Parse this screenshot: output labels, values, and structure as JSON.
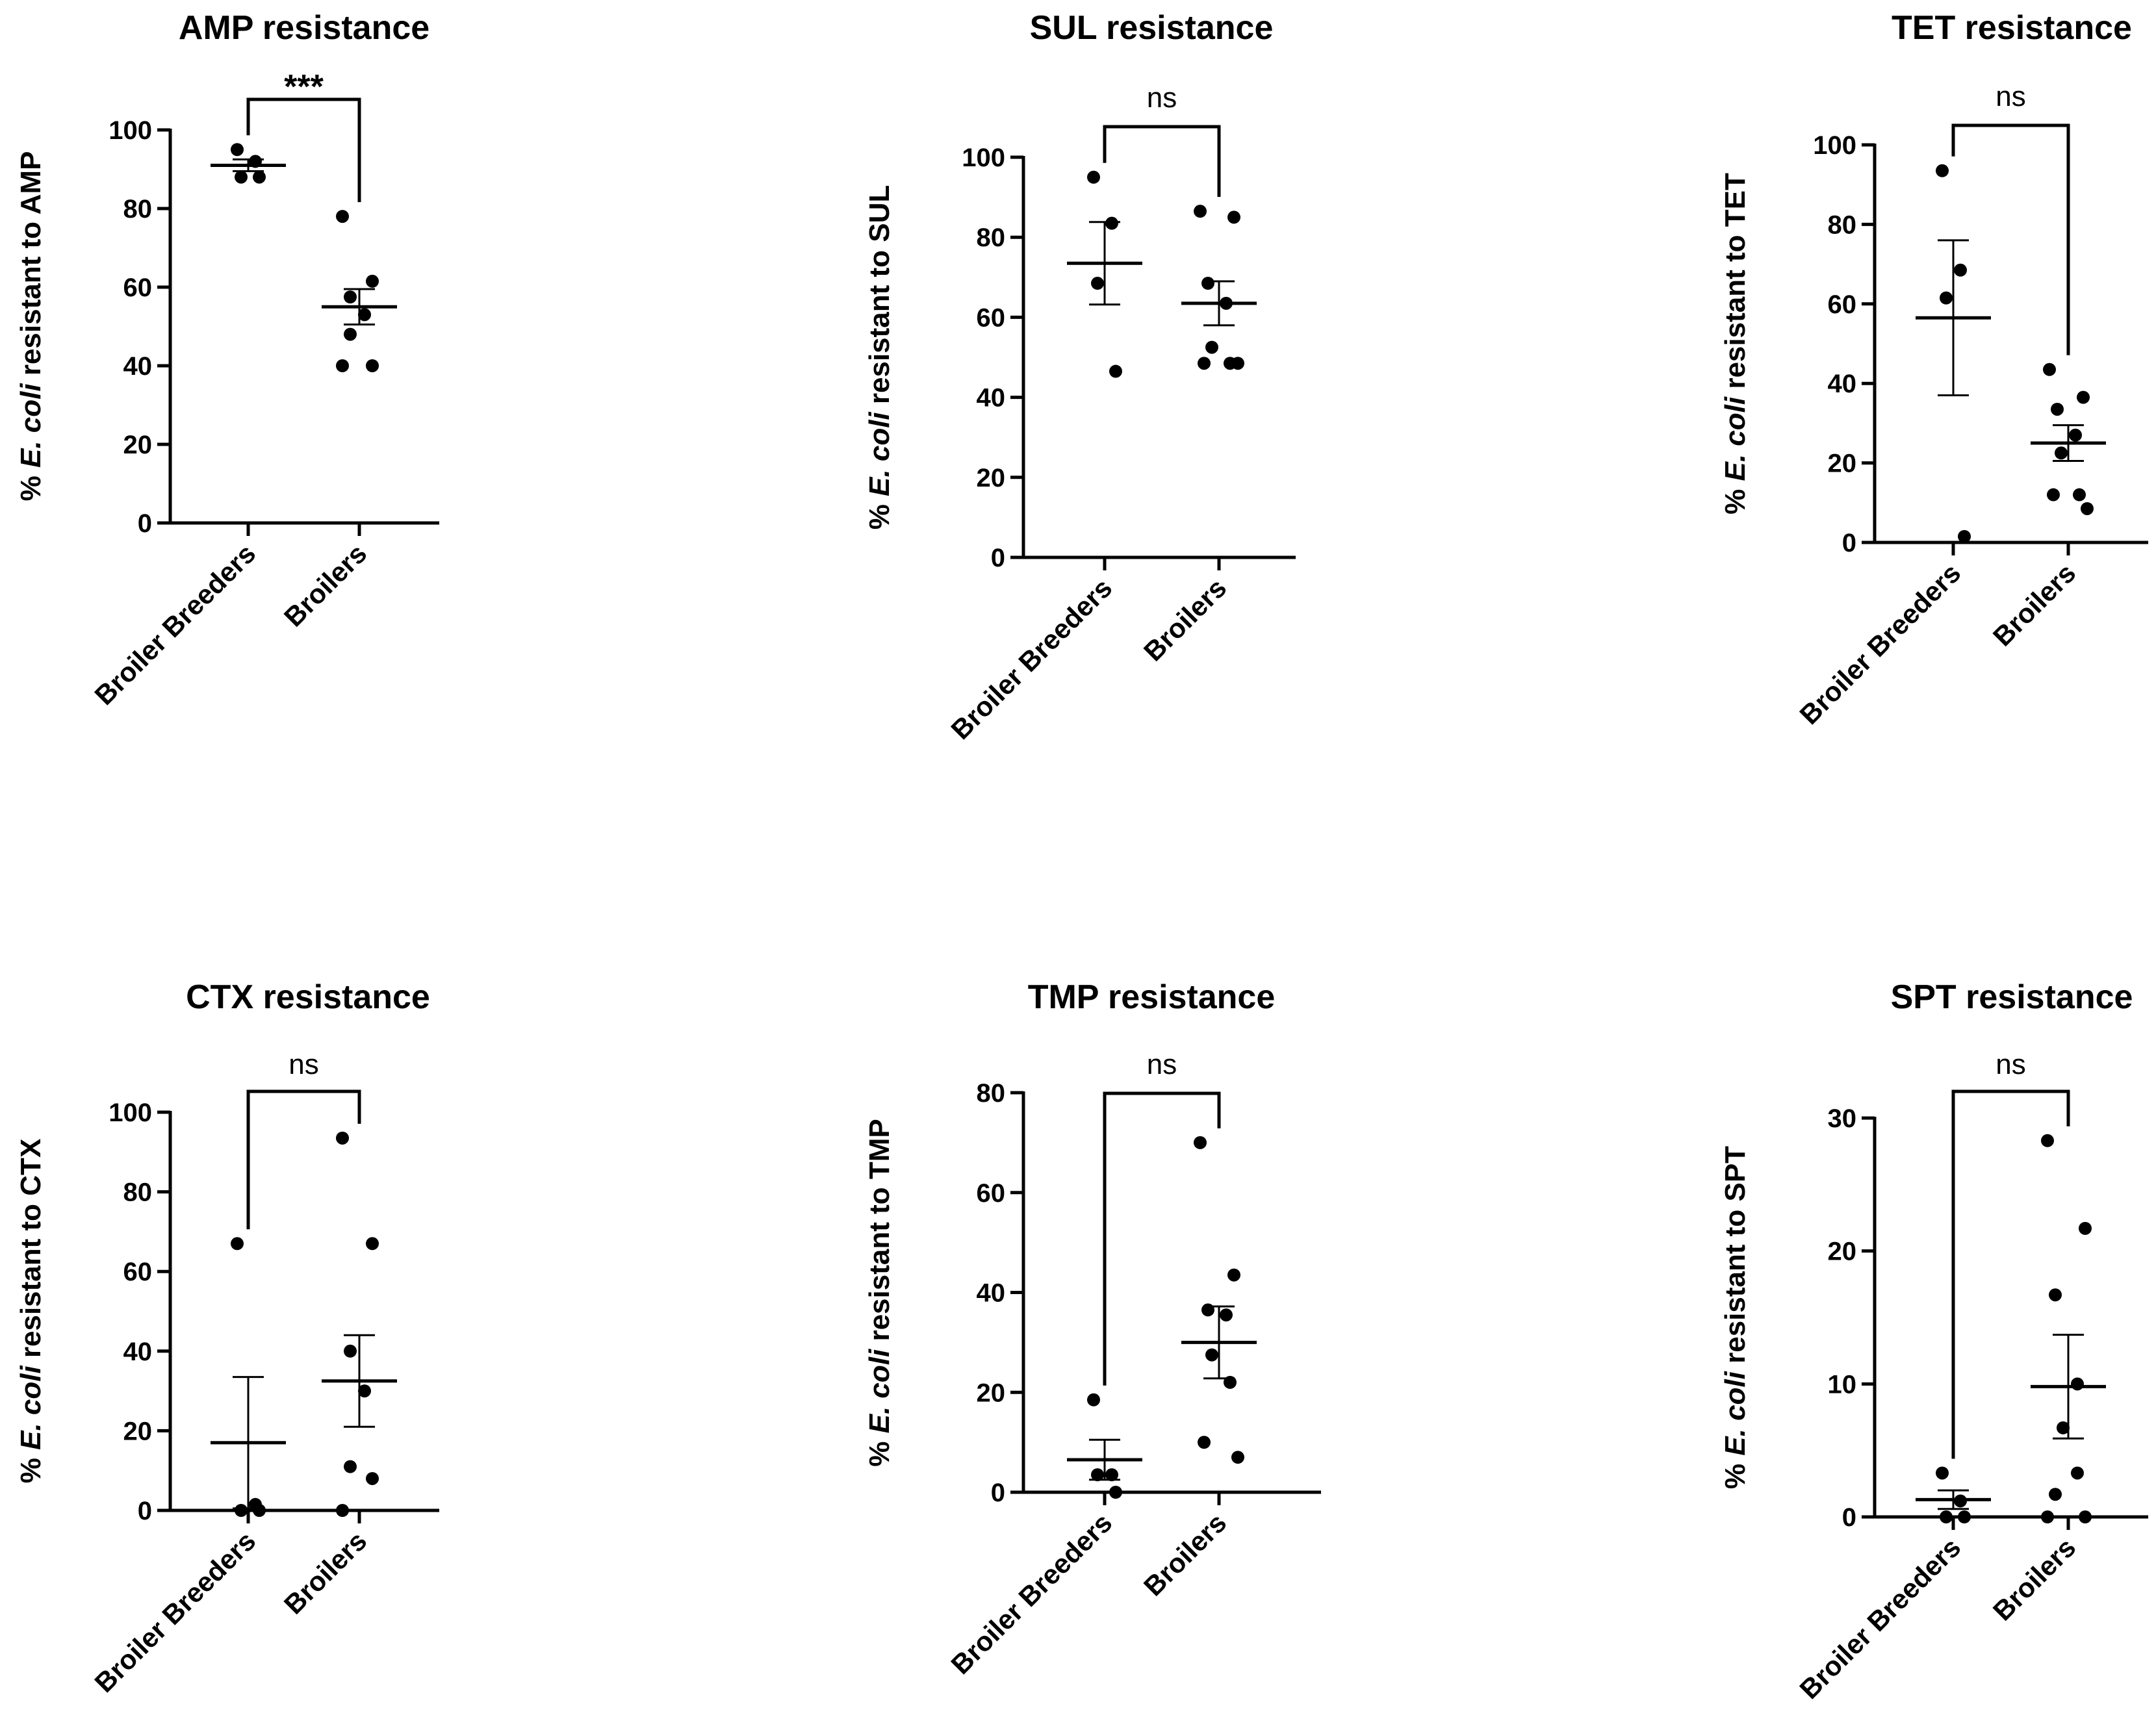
{
  "chart_data": [
    {
      "type": "scatter",
      "title": "AMP resistance",
      "ylabel_prefix": "% ",
      "ylabel_italic": "E. coli",
      "ylabel_suffix": " resistant to AMP",
      "categories": [
        "Broiler Breeders",
        "Broilers"
      ],
      "ylim": [
        0,
        100
      ],
      "yticks": [
        0,
        20,
        40,
        60,
        80,
        100
      ],
      "significance": "***",
      "groups": [
        {
          "name": "Broiler Breeders",
          "mean": 91,
          "sem": 1.5,
          "points": [
            95,
            92,
            88,
            88
          ]
        },
        {
          "name": "Broilers",
          "mean": 55,
          "sem": 4.5,
          "points": [
            78,
            61.5,
            57.5,
            53,
            48,
            40,
            40
          ]
        }
      ]
    },
    {
      "type": "scatter",
      "title": "SUL resistance",
      "ylabel_prefix": "% ",
      "ylabel_italic": "E. coli",
      "ylabel_suffix": " resistant to SUL",
      "categories": [
        "Broiler Breeders",
        "Broilers"
      ],
      "ylim": [
        0,
        100
      ],
      "yticks": [
        0,
        20,
        40,
        60,
        80,
        100
      ],
      "significance": "ns",
      "groups": [
        {
          "name": "Broiler Breeders",
          "mean": 73.5,
          "sem": 10.3,
          "points": [
            95,
            83.5,
            68.5,
            46.5
          ]
        },
        {
          "name": "Broilers",
          "mean": 63.5,
          "sem": 5.5,
          "points": [
            86.5,
            85,
            68.5,
            63.5,
            52.5,
            48.5,
            48.5,
            48.5
          ]
        }
      ]
    },
    {
      "type": "scatter",
      "title": "TET resistance",
      "ylabel_prefix": "% ",
      "ylabel_italic": "E. coli",
      "ylabel_suffix": " resistant to TET",
      "categories": [
        "Broiler Breeders",
        "Broilers"
      ],
      "ylim": [
        0,
        100
      ],
      "yticks": [
        0,
        20,
        40,
        60,
        80,
        100
      ],
      "significance": "ns",
      "groups": [
        {
          "name": "Broiler Breeders",
          "mean": 56.5,
          "sem": 19.5,
          "points": [
            93.5,
            68.5,
            61.5,
            1.5
          ]
        },
        {
          "name": "Broilers",
          "mean": 25,
          "sem": 4.5,
          "points": [
            43.5,
            36.5,
            33.5,
            27,
            22.5,
            12,
            12,
            8.5
          ]
        }
      ]
    },
    {
      "type": "scatter",
      "title": "CTX resistance",
      "ylabel_prefix": "% ",
      "ylabel_italic": "E. coli",
      "ylabel_suffix": " resistant to CTX",
      "categories": [
        "Broiler Breeders",
        "Broilers"
      ],
      "ylim": [
        0,
        100
      ],
      "yticks": [
        0,
        20,
        40,
        60,
        80,
        100
      ],
      "significance": "ns",
      "groups": [
        {
          "name": "Broiler Breeders",
          "mean": 17,
          "sem": 16.5,
          "points": [
            67,
            1.5,
            0,
            0
          ]
        },
        {
          "name": "Broilers",
          "mean": 32.5,
          "sem": 11.5,
          "points": [
            93.5,
            67,
            40,
            30,
            11,
            8,
            0
          ]
        }
      ]
    },
    {
      "type": "scatter",
      "title": "TMP resistance",
      "ylabel_prefix": "% ",
      "ylabel_italic": "E. coli",
      "ylabel_suffix": " resistant to TMP",
      "categories": [
        "Broiler Breeders",
        "Broilers"
      ],
      "ylim": [
        0,
        80
      ],
      "yticks": [
        0,
        20,
        40,
        60,
        80
      ],
      "significance": "ns",
      "groups": [
        {
          "name": "Broiler Breeders",
          "mean": 6.5,
          "sem": 4,
          "points": [
            18.5,
            3.5,
            3.5,
            0
          ]
        },
        {
          "name": "Broilers",
          "mean": 30,
          "sem": 7.2,
          "points": [
            70,
            43.5,
            36.5,
            35.5,
            27.5,
            22,
            10,
            7
          ]
        }
      ]
    },
    {
      "type": "scatter",
      "title": "SPT resistance",
      "ylabel_prefix": "% ",
      "ylabel_italic": "E. coli",
      "ylabel_suffix": " resistant to SPT",
      "categories": [
        "Broiler Breeders",
        "Broilers"
      ],
      "ylim": [
        0,
        30
      ],
      "yticks": [
        0,
        10,
        20,
        30
      ],
      "significance": "ns",
      "groups": [
        {
          "name": "Broiler Breeders",
          "mean": 1.3,
          "sem": 0.7,
          "points": [
            3.3,
            1.2,
            0,
            0
          ]
        },
        {
          "name": "Broilers",
          "mean": 9.8,
          "sem": 3.9,
          "points": [
            28.3,
            21.7,
            16.7,
            10,
            6.7,
            3.3,
            1.7,
            0,
            0
          ]
        }
      ]
    }
  ]
}
